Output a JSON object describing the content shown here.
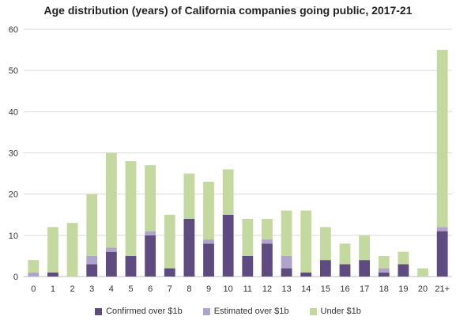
{
  "chart_data": {
    "type": "bar",
    "stacked": true,
    "title": "Age distribution (years) of California companies going public, 2017-21",
    "xlabel": "",
    "ylabel": "",
    "ylim": [
      0,
      60
    ],
    "yticks": [
      0,
      10,
      20,
      30,
      40,
      50,
      60
    ],
    "grid": true,
    "legend_position": "bottom",
    "categories": [
      "0",
      "1",
      "2",
      "3",
      "4",
      "5",
      "6",
      "7",
      "8",
      "9",
      "10",
      "11",
      "12",
      "13",
      "14",
      "15",
      "16",
      "17",
      "18",
      "19",
      "20",
      "21+"
    ],
    "series": [
      {
        "name": "Confirmed over $1b",
        "color": "#5e4b7f",
        "values": [
          0,
          1,
          0,
          3,
          6,
          5,
          10,
          2,
          14,
          8,
          15,
          5,
          8,
          2,
          1,
          4,
          3,
          4,
          1,
          3,
          0,
          11
        ]
      },
      {
        "name": "Estimated over $1b",
        "color": "#b0a4cd",
        "values": [
          1,
          0,
          0,
          2,
          1,
          0,
          1,
          0,
          0,
          1,
          0,
          0,
          1,
          3,
          0,
          0,
          0,
          0,
          1,
          0,
          0,
          1
        ]
      },
      {
        "name": "Under $1b",
        "color": "#c4d9a0",
        "values": [
          3,
          11,
          13,
          15,
          23,
          23,
          16,
          13,
          11,
          14,
          11,
          9,
          5,
          11,
          15,
          8,
          5,
          6,
          3,
          3,
          2,
          43
        ]
      }
    ]
  }
}
